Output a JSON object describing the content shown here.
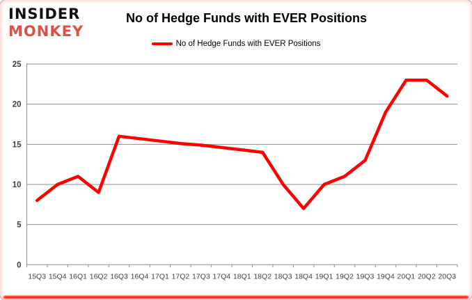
{
  "logo": {
    "line1": "INSIDER",
    "line2": "MONKEY"
  },
  "header": {
    "title": "No of Hedge Funds with EVER Positions"
  },
  "legend": {
    "label": "No of Hedge Funds with EVER Positions"
  },
  "colors": {
    "line": "#ff0000",
    "logo_monkey": "#dd5247",
    "grid": "#8c8c8c",
    "axis_line": "#8c8c8c",
    "y_tick_text": "#3f3f3f",
    "x_tick_text": "#404040",
    "bottom_border": "#ff1500"
  },
  "chart_data": {
    "type": "line",
    "title": "No of Hedge Funds with EVER Positions",
    "x": [
      "15Q3",
      "15Q4",
      "16Q1",
      "16Q2",
      "16Q3",
      "16Q4",
      "17Q1",
      "17Q2",
      "17Q3",
      "17Q4",
      "18Q1",
      "18Q2",
      "18Q3",
      "18Q4",
      "19Q1",
      "19Q2",
      "19Q3",
      "19Q4",
      "20Q1",
      "20Q2",
      "20Q3"
    ],
    "series": [
      {
        "name": "No of Hedge Funds with EVER Positions",
        "color": "#ff0000",
        "values": [
          8,
          10,
          11,
          9,
          16,
          15.7,
          15.4,
          15.1,
          14.9,
          14.6,
          14.3,
          14,
          10,
          7,
          10,
          11,
          13,
          19,
          23,
          23,
          21
        ]
      }
    ],
    "xlabel": "",
    "ylabel": "",
    "ylim": [
      0,
      25
    ],
    "yticks": [
      0,
      5,
      10,
      15,
      20,
      25
    ],
    "grid": true,
    "legend_position": "top-center"
  }
}
